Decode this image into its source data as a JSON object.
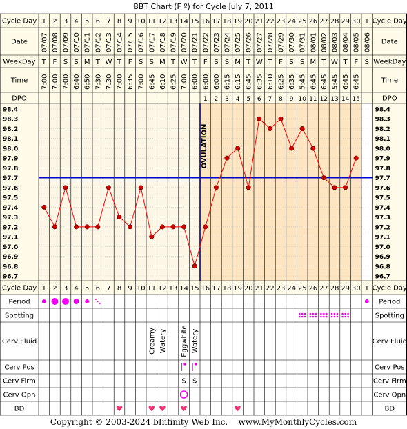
{
  "chart_data": {
    "type": "line",
    "title": "BBT Chart (F º) for Cycle July 7, 2011",
    "row_labels": {
      "cycle_day": "Cycle Day",
      "date": "Date",
      "weekday": "WeekDay",
      "time": "Time",
      "dpo": "DPO",
      "period": "Period",
      "spotting": "Spotting",
      "cerv_fluid": "Cerv Fluid",
      "cerv_pos": "Cerv Pos",
      "cerv_firm": "Cerv Firm",
      "cerv_opn": "Cerv Opn",
      "bd": "BD"
    },
    "cycle_days": [
      1,
      2,
      3,
      4,
      5,
      6,
      7,
      8,
      9,
      10,
      11,
      12,
      13,
      14,
      15,
      16,
      17,
      18,
      19,
      20,
      21,
      22,
      23,
      24,
      25,
      26,
      27,
      28,
      29,
      30,
      1
    ],
    "dates": [
      "07/07",
      "07/08",
      "07/09",
      "07/10",
      "07/11",
      "07/12",
      "07/13",
      "07/14",
      "07/15",
      "07/16",
      "07/17",
      "07/18",
      "07/19",
      "07/20",
      "07/21",
      "07/22",
      "07/23",
      "07/24",
      "07/25",
      "07/26",
      "07/27",
      "07/28",
      "07/29",
      "07/30",
      "07/31",
      "08/01",
      "08/02",
      "08/03",
      "08/04",
      "08/05",
      "08/06"
    ],
    "weekdays": [
      "T",
      "F",
      "S",
      "S",
      "M",
      "T",
      "W",
      "T",
      "F",
      "S",
      "S",
      "M",
      "T",
      "W",
      "T",
      "F",
      "S",
      "S",
      "M",
      "T",
      "W",
      "T",
      "F",
      "S",
      "S",
      "M",
      "T",
      "W",
      "T",
      "F",
      "S"
    ],
    "times": [
      "7:00",
      "7:00",
      "7:00",
      "6:40",
      "6:50",
      "7:30",
      "7:30",
      "7:00",
      "6:35",
      "7:00",
      "6:45",
      "6:10",
      "6:25",
      "7:00",
      "6:00",
      "6:00",
      "6:00",
      "6:15",
      "6:15",
      "6:45",
      "6:35",
      "6:10",
      "6:25",
      "6:35",
      "5:45",
      "6:45",
      "6:45",
      "5:45",
      "6:45",
      "6:45",
      ""
    ],
    "dpo": [
      "",
      "",
      "",
      "",
      "",
      "",
      "",
      "",
      "",
      "",
      "",
      "",
      "",
      "",
      "",
      "1",
      "2",
      "3",
      "4",
      "5",
      "6",
      "7",
      "8",
      "9",
      "10",
      "11",
      "12",
      "13",
      "14",
      "15",
      ""
    ],
    "y_ticks": [
      "98.4",
      "98.3",
      "98.2",
      "98.1",
      "98.0",
      "97.9",
      "97.8",
      "97.7",
      "97.6",
      "97.5",
      "97.4",
      "97.3",
      "97.2",
      "97.1",
      "97.0",
      "96.9",
      "96.8",
      "96.7"
    ],
    "ylim": [
      96.7,
      98.4
    ],
    "temps": [
      97.4,
      97.2,
      97.6,
      97.2,
      97.2,
      97.2,
      97.6,
      97.3,
      97.2,
      97.6,
      97.1,
      97.2,
      97.2,
      97.2,
      96.8,
      97.2,
      97.6,
      97.9,
      98.0,
      97.6,
      98.3,
      98.2,
      98.3,
      98.0,
      98.2,
      98.0,
      97.7,
      97.6,
      97.6,
      97.9,
      null
    ],
    "coverline": 97.7,
    "ovulation_day": 15,
    "ovulation_label": "OVULATION",
    "period": [
      "small",
      "large",
      "large",
      "medium",
      "small",
      "spot",
      "",
      "",
      "",
      "",
      "",
      "",
      "",
      "",
      "",
      "",
      "",
      "",
      "",
      "",
      "",
      "",
      "",
      "",
      "",
      "",
      "",
      "",
      "",
      "",
      "small"
    ],
    "spotting_days": [
      25,
      26,
      27,
      28,
      29
    ],
    "cerv_fluid": {
      "11": "Creamy",
      "12": "Watery",
      "14": "Eggwhite",
      "15": "Watery"
    },
    "cerv_pos_days": [
      14,
      15
    ],
    "cerv_firm": {
      "14": "S",
      "15": "S"
    },
    "cerv_opn_days": [
      14
    ],
    "bd_days": [
      8,
      11,
      12,
      14,
      19
    ],
    "colors": {
      "background": "#ffffff",
      "pre_ovulation": "#fbf6e6",
      "post_ovulation": "#fde5c1",
      "line": "#ff0000",
      "dot": "#cc0000",
      "coverline": "#0000cc",
      "period": "#ee00ee",
      "bd": "#ee3377",
      "grid": "#000000"
    },
    "copyright": "Copyright © 2003-2024 bInfinity Web Inc.    www.MyMonthlyCycles.com"
  }
}
